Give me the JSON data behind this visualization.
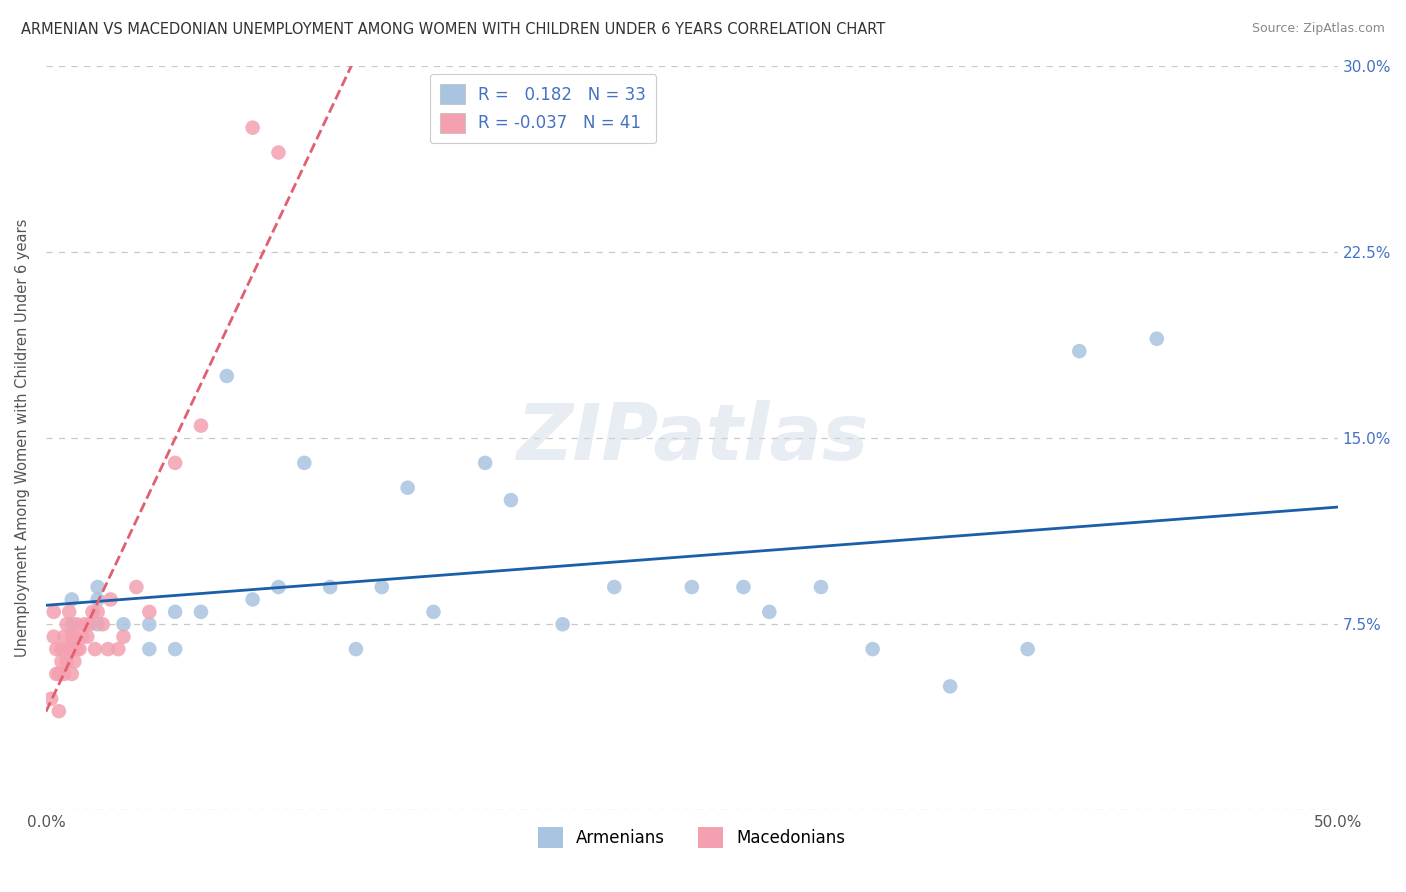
{
  "title": "ARMENIAN VS MACEDONIAN UNEMPLOYMENT AMONG WOMEN WITH CHILDREN UNDER 6 YEARS CORRELATION CHART",
  "source": "Source: ZipAtlas.com",
  "ylabel": "Unemployment Among Women with Children Under 6 years",
  "xlim": [
    0.0,
    0.5
  ],
  "ylim": [
    0.0,
    0.3
  ],
  "xticks": [
    0.0,
    0.05,
    0.1,
    0.15,
    0.2,
    0.25,
    0.3,
    0.35,
    0.4,
    0.45,
    0.5
  ],
  "yticks": [
    0.0,
    0.075,
    0.15,
    0.225,
    0.3
  ],
  "armenian_R": 0.182,
  "armenian_N": 33,
  "macedonian_R": -0.037,
  "macedonian_N": 41,
  "armenian_color": "#a8c4e0",
  "macedonian_color": "#f4a0b0",
  "armenian_line_color": "#1a5fa8",
  "macedonian_line_color": "#e06070",
  "armenian_x": [
    0.01,
    0.01,
    0.02,
    0.02,
    0.02,
    0.03,
    0.04,
    0.04,
    0.05,
    0.05,
    0.06,
    0.07,
    0.08,
    0.09,
    0.1,
    0.11,
    0.12,
    0.13,
    0.14,
    0.15,
    0.17,
    0.18,
    0.2,
    0.22,
    0.25,
    0.27,
    0.28,
    0.3,
    0.32,
    0.35,
    0.38,
    0.4,
    0.43
  ],
  "armenian_y": [
    0.075,
    0.085,
    0.075,
    0.085,
    0.09,
    0.075,
    0.065,
    0.075,
    0.065,
    0.08,
    0.08,
    0.175,
    0.085,
    0.09,
    0.14,
    0.09,
    0.065,
    0.09,
    0.13,
    0.08,
    0.14,
    0.125,
    0.075,
    0.09,
    0.09,
    0.09,
    0.08,
    0.09,
    0.065,
    0.05,
    0.065,
    0.185,
    0.19
  ],
  "macedonian_x": [
    0.002,
    0.003,
    0.003,
    0.004,
    0.004,
    0.005,
    0.005,
    0.006,
    0.006,
    0.007,
    0.007,
    0.008,
    0.008,
    0.009,
    0.009,
    0.01,
    0.01,
    0.011,
    0.011,
    0.012,
    0.012,
    0.013,
    0.014,
    0.015,
    0.016,
    0.017,
    0.018,
    0.019,
    0.02,
    0.022,
    0.024,
    0.025,
    0.028,
    0.03,
    0.035,
    0.04,
    0.05,
    0.06,
    0.08,
    0.09,
    0.01
  ],
  "macedonian_y": [
    0.045,
    0.07,
    0.08,
    0.055,
    0.065,
    0.04,
    0.055,
    0.06,
    0.065,
    0.055,
    0.07,
    0.06,
    0.075,
    0.065,
    0.08,
    0.055,
    0.07,
    0.06,
    0.07,
    0.065,
    0.075,
    0.065,
    0.07,
    0.075,
    0.07,
    0.075,
    0.08,
    0.065,
    0.08,
    0.075,
    0.065,
    0.085,
    0.065,
    0.07,
    0.09,
    0.08,
    0.14,
    0.155,
    0.275,
    0.265,
    0.065
  ]
}
